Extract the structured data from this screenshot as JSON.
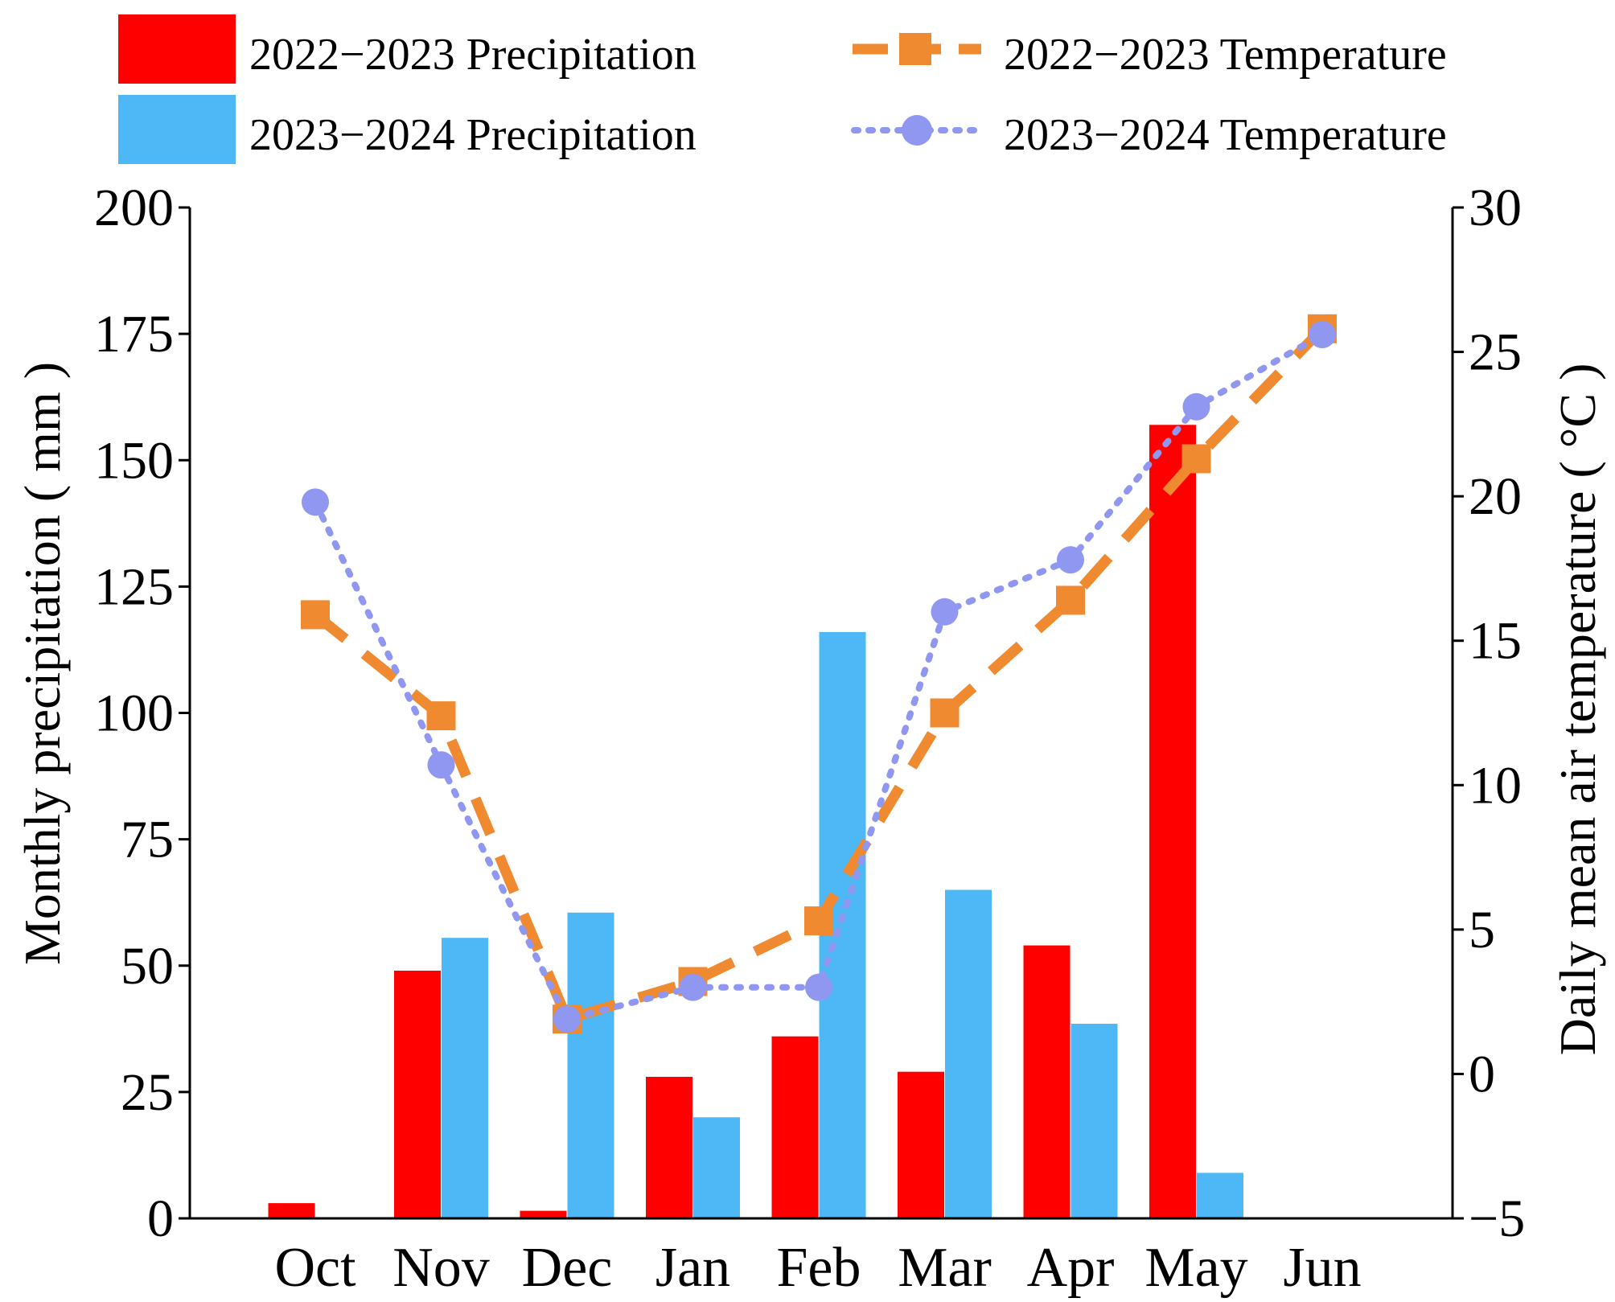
{
  "chart_data": {
    "type": "bar",
    "categories": [
      "Oct",
      "Nov",
      "Dec",
      "Jan",
      "Feb",
      "Mar",
      "Apr",
      "May",
      "Jun"
    ],
    "series": [
      {
        "name": "2022−2023 Precipitation",
        "kind": "bar",
        "axis": "left",
        "color": "#ff0000",
        "values": [
          3,
          49,
          1.5,
          28,
          36,
          29,
          54,
          157,
          null
        ]
      },
      {
        "name": "2023−2024 Precipitation",
        "kind": "bar",
        "axis": "left",
        "color": "#4db8f5",
        "values": [
          null,
          55.5,
          60.5,
          20,
          116,
          65,
          38.5,
          9,
          null
        ]
      },
      {
        "name": "2022−2023 Temperature",
        "kind": "line",
        "axis": "right",
        "style": "dashed",
        "marker": "square",
        "color": "#f08a30",
        "values": [
          15.9,
          12.4,
          1.9,
          3.2,
          5.3,
          12.5,
          16.4,
          21.3,
          25.8
        ]
      },
      {
        "name": "2023−2024 Temperature",
        "kind": "line",
        "axis": "right",
        "style": "dotted",
        "marker": "circle",
        "color": "#8f97f0",
        "values": [
          19.8,
          10.7,
          1.9,
          3.0,
          3.0,
          16.0,
          17.8,
          23.1,
          25.6
        ]
      }
    ],
    "ylabel": "Monthly precipitation ( mm )",
    "y2label": "Daily mean air temperature ( °C )",
    "ylim": [
      0,
      200
    ],
    "y2lim": [
      -5,
      30
    ],
    "yticks": [
      "0",
      "25",
      "50",
      "75",
      "100",
      "125",
      "150",
      "175",
      "200"
    ],
    "y2ticks": [
      "−5",
      "0",
      "5",
      "10",
      "15",
      "20",
      "25",
      "30"
    ],
    "legend_position": "top"
  }
}
